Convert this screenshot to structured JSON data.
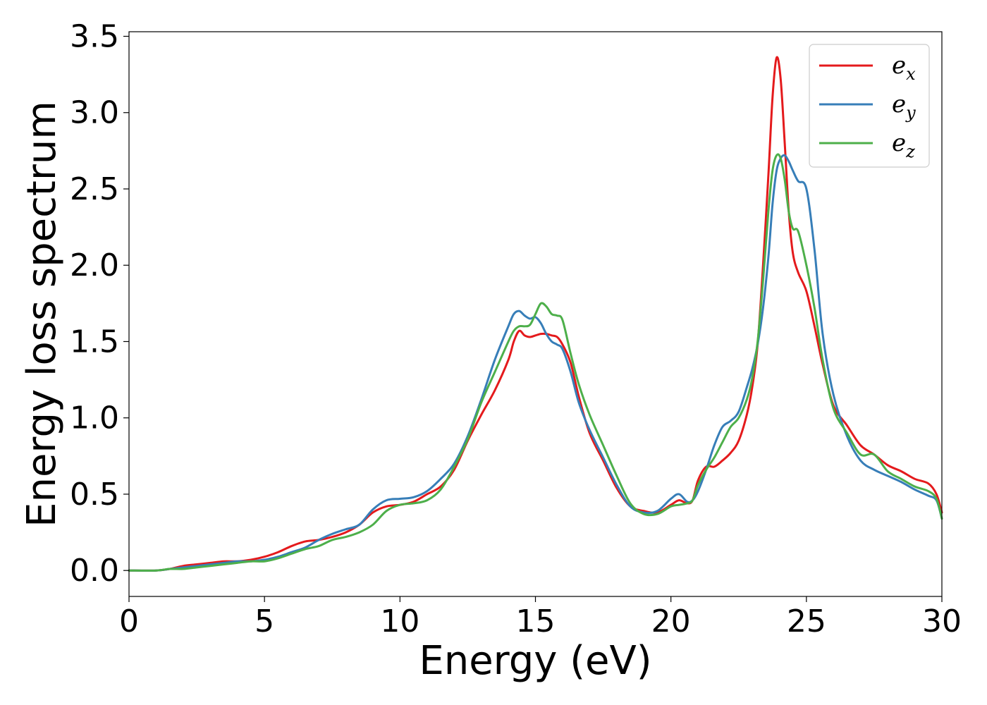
{
  "chart_data": {
    "type": "line",
    "title": "",
    "xlabel": "Energy (eV)",
    "ylabel": "Energy loss spectrum",
    "xlim": [
      0,
      30
    ],
    "ylim": [
      -0.17,
      3.53
    ],
    "xticks": [
      "0",
      "5",
      "10",
      "15",
      "20",
      "25",
      "30"
    ],
    "yticks": [
      "0.0",
      "0.5",
      "1.0",
      "1.5",
      "2.0",
      "2.5",
      "3.0",
      "3.5"
    ],
    "grid": false,
    "legend_position": "top-right",
    "series": [
      {
        "name": "e_x",
        "label_base": "e",
        "label_sub": "x",
        "color": "#e41a1c",
        "x": [
          0,
          1,
          1.5,
          2,
          2.5,
          3,
          3.5,
          4,
          4.5,
          5,
          5.5,
          6,
          6.5,
          7,
          7.5,
          8,
          8.5,
          9,
          9.5,
          10,
          10.5,
          11,
          11.5,
          12,
          12.5,
          13,
          13.5,
          14,
          14.2,
          14.4,
          14.6,
          14.8,
          15,
          15.2,
          15.4,
          15.6,
          15.8,
          16,
          16.3,
          16.6,
          17,
          17.5,
          18,
          18.5,
          19,
          19.5,
          20,
          20.3,
          20.6,
          20.8,
          21,
          21.3,
          21.6,
          21.9,
          22.2,
          22.5,
          22.8,
          23,
          23.2,
          23.4,
          23.6,
          23.75,
          23.9,
          24.05,
          24.2,
          24.35,
          24.5,
          24.7,
          25,
          25.3,
          25.6,
          26,
          26.5,
          27,
          27.5,
          28,
          28.5,
          29,
          29.5,
          29.8,
          30
        ],
        "y": [
          0.0,
          0.0,
          0.01,
          0.03,
          0.04,
          0.05,
          0.06,
          0.06,
          0.07,
          0.09,
          0.12,
          0.16,
          0.19,
          0.2,
          0.22,
          0.25,
          0.3,
          0.38,
          0.42,
          0.43,
          0.45,
          0.5,
          0.55,
          0.66,
          0.85,
          1.02,
          1.18,
          1.38,
          1.5,
          1.57,
          1.54,
          1.53,
          1.54,
          1.55,
          1.55,
          1.54,
          1.53,
          1.48,
          1.36,
          1.14,
          0.9,
          0.72,
          0.54,
          0.42,
          0.39,
          0.38,
          0.43,
          0.46,
          0.44,
          0.46,
          0.59,
          0.68,
          0.68,
          0.72,
          0.77,
          0.85,
          1.02,
          1.2,
          1.48,
          2.0,
          2.6,
          3.1,
          3.36,
          3.22,
          2.8,
          2.35,
          2.08,
          1.95,
          1.83,
          1.6,
          1.35,
          1.08,
          0.95,
          0.82,
          0.76,
          0.69,
          0.65,
          0.6,
          0.57,
          0.5,
          0.38
        ]
      },
      {
        "name": "e_y",
        "label_base": "e",
        "label_sub": "y",
        "color": "#377eb8",
        "x": [
          0,
          1,
          1.5,
          2,
          2.5,
          3,
          3.5,
          4,
          4.5,
          5,
          5.5,
          6,
          6.5,
          7,
          7.5,
          8,
          8.5,
          9,
          9.5,
          10,
          10.5,
          11,
          11.5,
          12,
          12.5,
          13,
          13.5,
          14,
          14.2,
          14.4,
          14.6,
          14.8,
          15,
          15.2,
          15.4,
          15.6,
          15.8,
          16,
          16.3,
          16.6,
          17,
          17.5,
          18,
          18.5,
          19,
          19.5,
          20,
          20.3,
          20.6,
          20.8,
          21,
          21.3,
          21.6,
          21.9,
          22.2,
          22.5,
          22.8,
          23,
          23.2,
          23.4,
          23.6,
          23.75,
          23.9,
          24.05,
          24.2,
          24.35,
          24.5,
          24.7,
          25,
          25.3,
          25.6,
          26,
          26.5,
          27,
          27.5,
          28,
          28.5,
          29,
          29.5,
          29.8,
          30
        ],
        "y": [
          0.0,
          0.0,
          0.01,
          0.02,
          0.03,
          0.04,
          0.05,
          0.06,
          0.06,
          0.07,
          0.09,
          0.12,
          0.15,
          0.2,
          0.24,
          0.27,
          0.3,
          0.4,
          0.46,
          0.47,
          0.48,
          0.52,
          0.6,
          0.7,
          0.88,
          1.12,
          1.38,
          1.6,
          1.68,
          1.7,
          1.67,
          1.65,
          1.66,
          1.62,
          1.55,
          1.5,
          1.48,
          1.45,
          1.3,
          1.1,
          0.92,
          0.74,
          0.56,
          0.42,
          0.38,
          0.39,
          0.47,
          0.5,
          0.45,
          0.46,
          0.52,
          0.66,
          0.82,
          0.94,
          0.98,
          1.04,
          1.2,
          1.32,
          1.48,
          1.72,
          2.06,
          2.4,
          2.62,
          2.7,
          2.72,
          2.68,
          2.62,
          2.55,
          2.5,
          2.1,
          1.55,
          1.15,
          0.88,
          0.72,
          0.66,
          0.62,
          0.58,
          0.53,
          0.49,
          0.46,
          0.34
        ]
      },
      {
        "name": "e_z",
        "label_base": "e",
        "label_sub": "z",
        "color": "#4daf4a",
        "x": [
          0,
          1,
          1.5,
          2,
          2.5,
          3,
          3.5,
          4,
          4.5,
          5,
          5.5,
          6,
          6.5,
          7,
          7.5,
          8,
          8.5,
          9,
          9.5,
          10,
          10.5,
          11,
          11.5,
          12,
          12.5,
          13,
          13.5,
          14,
          14.2,
          14.4,
          14.6,
          14.8,
          15,
          15.2,
          15.4,
          15.6,
          15.8,
          16,
          16.3,
          16.6,
          17,
          17.5,
          18,
          18.5,
          19,
          19.5,
          20,
          20.3,
          20.6,
          20.8,
          21,
          21.3,
          21.6,
          21.9,
          22.2,
          22.5,
          22.8,
          23,
          23.2,
          23.4,
          23.6,
          23.75,
          23.9,
          24.05,
          24.2,
          24.35,
          24.5,
          24.7,
          25,
          25.3,
          25.6,
          26,
          26.5,
          27,
          27.5,
          28,
          28.5,
          29,
          29.5,
          29.8,
          30
        ],
        "y": [
          0.0,
          0.0,
          0.01,
          0.01,
          0.02,
          0.03,
          0.04,
          0.05,
          0.06,
          0.06,
          0.08,
          0.11,
          0.14,
          0.16,
          0.2,
          0.22,
          0.25,
          0.3,
          0.39,
          0.43,
          0.44,
          0.46,
          0.53,
          0.68,
          0.86,
          1.1,
          1.3,
          1.5,
          1.57,
          1.6,
          1.6,
          1.61,
          1.68,
          1.75,
          1.73,
          1.68,
          1.67,
          1.64,
          1.42,
          1.22,
          1.02,
          0.82,
          0.62,
          0.44,
          0.37,
          0.37,
          0.42,
          0.43,
          0.44,
          0.46,
          0.56,
          0.66,
          0.74,
          0.84,
          0.94,
          1.0,
          1.12,
          1.26,
          1.5,
          1.9,
          2.36,
          2.62,
          2.72,
          2.7,
          2.56,
          2.35,
          2.24,
          2.22,
          2.0,
          1.72,
          1.38,
          1.06,
          0.9,
          0.76,
          0.76,
          0.65,
          0.6,
          0.55,
          0.52,
          0.47,
          0.34
        ]
      }
    ]
  }
}
